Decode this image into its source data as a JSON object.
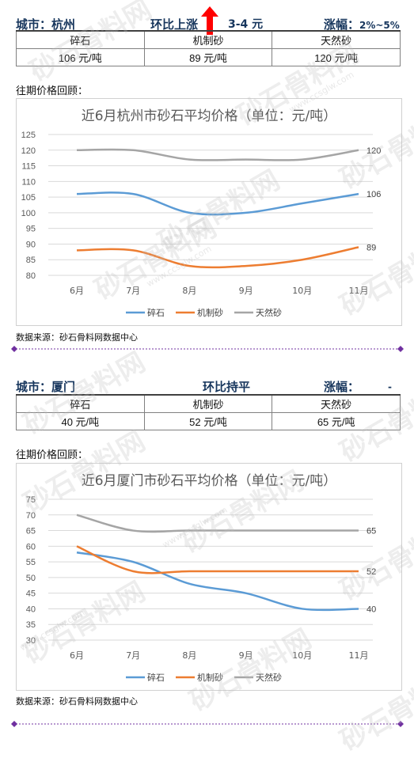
{
  "watermark": {
    "text": "砂石骨料网",
    "url": "www.ccsglw.com"
  },
  "sections": [
    {
      "header": {
        "city": "城市：杭州",
        "trend": "环比上涨",
        "range": "3-4 元",
        "change_label": "涨幅：",
        "change_value": "2%~5%",
        "has_arrow": true
      },
      "table": {
        "headers": [
          "碎石",
          "机制砂",
          "天然砂"
        ],
        "values": [
          "106 元/吨",
          "89 元/吨",
          "120 元/吨"
        ]
      },
      "review_label": "往期价格回顾：",
      "source": "数据来源：砂石骨料网数据中心"
    },
    {
      "header": {
        "city": "城市：厦门",
        "trend": "环比持平",
        "range": "",
        "change_label": "涨幅：",
        "change_value": "-",
        "has_arrow": false
      },
      "table": {
        "headers": [
          "碎石",
          "机制砂",
          "天然砂"
        ],
        "values": [
          "40 元/吨",
          "52 元/吨",
          "65 元/吨"
        ]
      },
      "review_label": "往期价格回顾：",
      "source": "数据来源：砂石骨料网数据中心"
    }
  ],
  "colors": {
    "series": [
      "#5b9bd5",
      "#ed7d31",
      "#a5a5a5"
    ],
    "divider": "#7030a0",
    "arrow": "#ff0000"
  },
  "chart_data": [
    {
      "type": "line",
      "title": "近6月杭州市砂石平均价格（单位：元/吨）",
      "categories": [
        "6月",
        "7月",
        "8月",
        "9月",
        "10月",
        "11月"
      ],
      "ylim": [
        80,
        125
      ],
      "yticks": [
        80,
        85,
        90,
        95,
        100,
        105,
        110,
        115,
        120,
        125
      ],
      "legend": "bottom",
      "series": [
        {
          "name": "碎石",
          "values": [
            106,
            106,
            100,
            100,
            103,
            106
          ],
          "end_label": "106"
        },
        {
          "name": "机制砂",
          "values": [
            88,
            88,
            83,
            83,
            85,
            89
          ],
          "end_label": "89"
        },
        {
          "name": "天然砂",
          "values": [
            120,
            120,
            117,
            117,
            117,
            120
          ],
          "end_label": "120"
        }
      ]
    },
    {
      "type": "line",
      "title": "近6月厦门市砂石平均价格（单位：元/吨）",
      "categories": [
        "6月",
        "7月",
        "8月",
        "9月",
        "10月",
        "11月"
      ],
      "ylim": [
        30,
        75
      ],
      "yticks": [
        30,
        35,
        40,
        45,
        50,
        55,
        60,
        65,
        70,
        75
      ],
      "legend": "bottom",
      "series": [
        {
          "name": "碎石",
          "values": [
            58,
            55,
            48,
            45,
            40,
            40
          ],
          "end_label": "40"
        },
        {
          "name": "机制砂",
          "values": [
            60,
            52,
            52,
            52,
            52,
            52
          ],
          "end_label": "52"
        },
        {
          "name": "天然砂",
          "values": [
            70,
            65,
            65,
            65,
            65,
            65
          ],
          "end_label": "65"
        }
      ]
    }
  ]
}
